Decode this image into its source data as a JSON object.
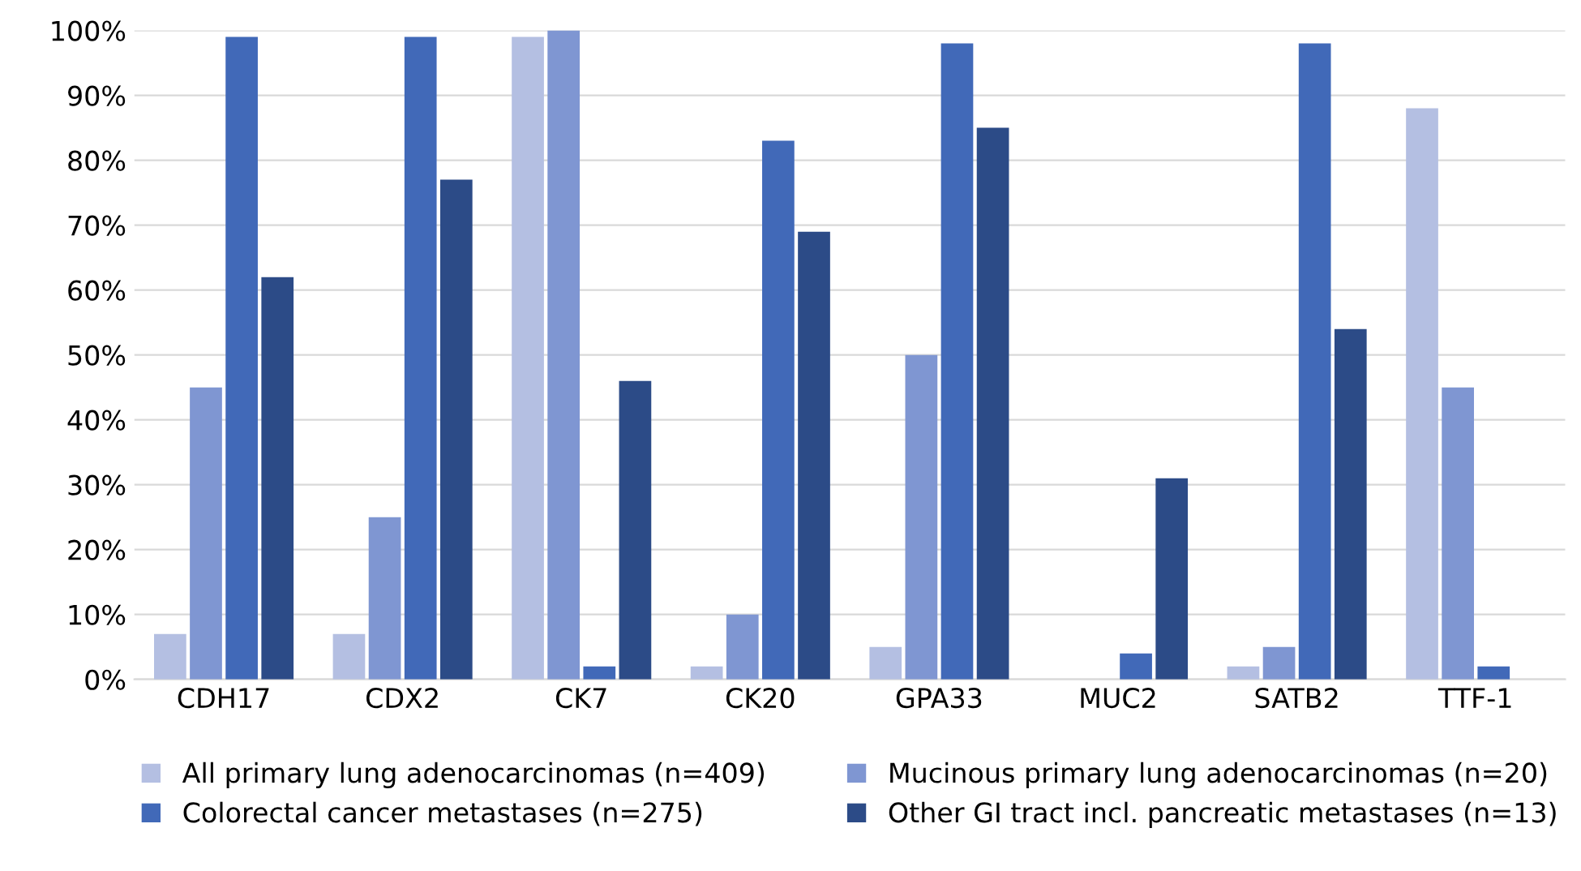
{
  "chart_data": {
    "type": "bar",
    "categories": [
      "CDH17",
      "CDX2",
      "CK7",
      "CK20",
      "GPA33",
      "MUC2",
      "SATB2",
      "TTF-1"
    ],
    "series": [
      {
        "name": "All primary lung adenocarcinomas (n=409)",
        "color": "#b4bfe2",
        "values": [
          7,
          7,
          99,
          2,
          5,
          0,
          2,
          88
        ]
      },
      {
        "name": "Mucinous primary lung adenocarcinomas (n=20)",
        "color": "#7f96d2",
        "values": [
          45,
          25,
          100,
          10,
          50,
          0,
          5,
          45
        ]
      },
      {
        "name": "Colorectal cancer metastases (n=275)",
        "color": "#4169b8",
        "values": [
          99,
          99,
          2,
          83,
          98,
          4,
          98,
          2
        ]
      },
      {
        "name": "Other GI tract incl. pancreatic metastases (n=13)",
        "color": "#2c4b87",
        "values": [
          62,
          77,
          46,
          69,
          85,
          31,
          54,
          0
        ]
      }
    ],
    "ylim": [
      0,
      100
    ],
    "yticks": [
      {
        "value": 0,
        "label": "0%"
      },
      {
        "value": 10,
        "label": "10%"
      },
      {
        "value": 20,
        "label": "20%"
      },
      {
        "value": 30,
        "label": "30%"
      },
      {
        "value": 40,
        "label": "40%"
      },
      {
        "value": 50,
        "label": "50%"
      },
      {
        "value": 60,
        "label": "60%"
      },
      {
        "value": 70,
        "label": "70%"
      },
      {
        "value": 80,
        "label": "80%"
      },
      {
        "value": 90,
        "label": "90%"
      },
      {
        "value": 100,
        "label": "100%"
      }
    ],
    "grid": "y",
    "legend": "bottom"
  }
}
